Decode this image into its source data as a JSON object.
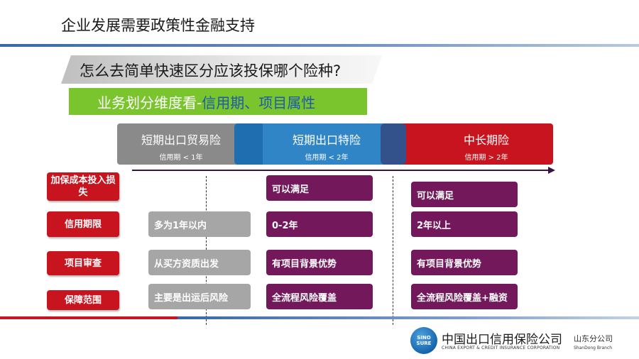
{
  "header": {
    "title": "企业发展需要政策性金融支持",
    "question": "怎么去简单快速区分应该投保哪个险种?",
    "dimension_lead": "业务划分维度看-",
    "dimension_highlight": "信用期、项目属性"
  },
  "bands": [
    {
      "name": "短期出口贸易险",
      "sub": "信用期 < 1年",
      "color": "#8a8a8a"
    },
    {
      "name": "短期出口特险",
      "sub": "信用期 < 2年",
      "color": "#2f85c6"
    },
    {
      "name": "中长期险",
      "sub": "信用期 > 2年",
      "color": "#c8141e"
    }
  ],
  "rows": [
    {
      "label": "加保成本投入损失",
      "cells": [
        "",
        "可以满足",
        "可以满足"
      ]
    },
    {
      "label": "信用期限",
      "cells": [
        "多为1年以内",
        "0-2年",
        "2年以上"
      ]
    },
    {
      "label": "项目审查",
      "cells": [
        "从买方资质出发",
        "有项目背景优势",
        "有项目背景优势"
      ]
    },
    {
      "label": "保障范围",
      "cells": [
        "主要是出运后风险",
        "全流程风险覆盖",
        "全流程风险覆盖+融资"
      ]
    }
  ],
  "footer": {
    "logo_text": "SINO SURE",
    "company_cn": "中国出口信用保险公司",
    "company_en": "CHINA EXPORT & CREDIT INSURANCE CORPORATION",
    "branch_cn": "山东分公司",
    "branch_en": "ShanDong Branch"
  },
  "colors": {
    "accent_red": "#c8141e",
    "accent_purple": "#74185c",
    "accent_green": "#7ac52e",
    "accent_blue": "#2f85c6",
    "neutral_gray": "#a6a6a6"
  }
}
